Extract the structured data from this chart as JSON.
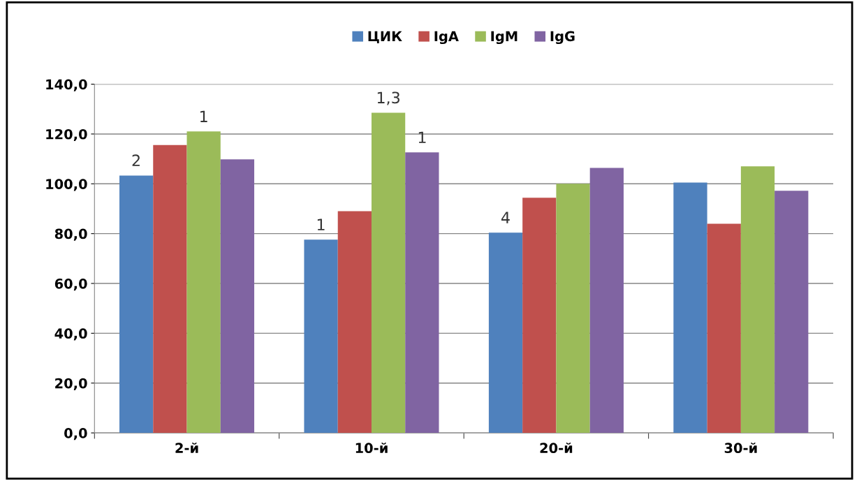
{
  "chart_data": {
    "type": "bar",
    "categories": [
      "2-й",
      "10-й",
      "20-й",
      "30-й"
    ],
    "series": [
      {
        "name": "ЦИК",
        "color": "#4f81bd",
        "values": [
          103.3,
          77.6,
          80.4,
          100.5
        ]
      },
      {
        "name": "IgA",
        "color": "#c0504d",
        "values": [
          115.6,
          89.0,
          94.4,
          84.0
        ]
      },
      {
        "name": "IgM",
        "color": "#9bbb59",
        "values": [
          121.0,
          128.5,
          100.0,
          107.0
        ]
      },
      {
        "name": "IgG",
        "color": "#8064a2",
        "values": [
          109.8,
          112.6,
          106.4,
          97.2
        ]
      }
    ],
    "ylim": [
      0,
      140
    ],
    "yticks": [
      {
        "value": 0,
        "label": "0,0"
      },
      {
        "value": 20,
        "label": "20,0"
      },
      {
        "value": 40,
        "label": "40,0"
      },
      {
        "value": 60,
        "label": "60,0"
      },
      {
        "value": 80,
        "label": "80,0"
      },
      {
        "value": 100,
        "label": "100,0"
      },
      {
        "value": 120,
        "label": "120,0"
      },
      {
        "value": 140,
        "label": "140,0"
      }
    ],
    "grid": "y",
    "legend": "top",
    "annotations": [
      "2",
      "1",
      "1",
      "1,3",
      "1",
      "4"
    ]
  }
}
